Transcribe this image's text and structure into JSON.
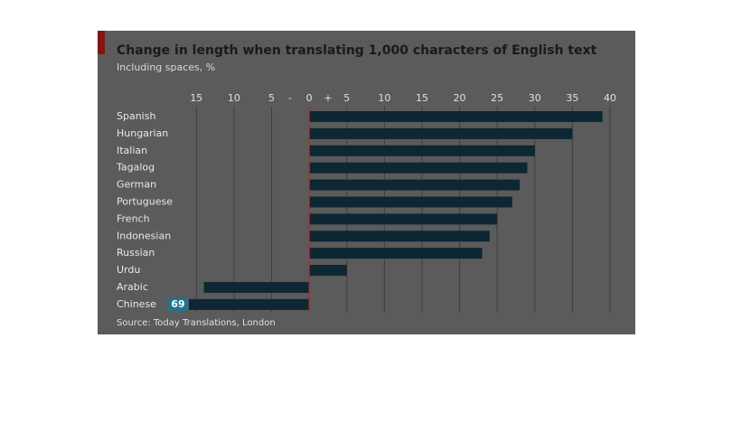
{
  "chart_data": {
    "type": "hbar",
    "title": "Change in length when translating 1,000 characters of English text",
    "subtitle": "Including spaces, %",
    "source": "Source: Today Translations, London",
    "minus_sign": "-",
    "plus_sign": "+",
    "categories": [
      "Spanish",
      "Hungarian",
      "Italian",
      "Tagalog",
      "German",
      "Portuguese",
      "French",
      "Indonesian",
      "Russian",
      "Urdu",
      "Arabic",
      "Chinese"
    ],
    "values": [
      39,
      35,
      30,
      29,
      28,
      27,
      25,
      24,
      23,
      5,
      -14,
      -69
    ],
    "value_labels": [
      null,
      null,
      null,
      null,
      null,
      null,
      null,
      null,
      null,
      null,
      null,
      "69"
    ],
    "color": "#0d2733",
    "highlight_color": "#1d7391",
    "xlim": [
      -16,
      40
    ],
    "xticks": [
      {
        "value": -15,
        "label": "15"
      },
      {
        "value": -10,
        "label": "10"
      },
      {
        "value": -5,
        "label": "5"
      },
      0,
      5,
      10,
      15,
      20,
      25,
      30,
      35,
      40
    ],
    "grid": true
  }
}
